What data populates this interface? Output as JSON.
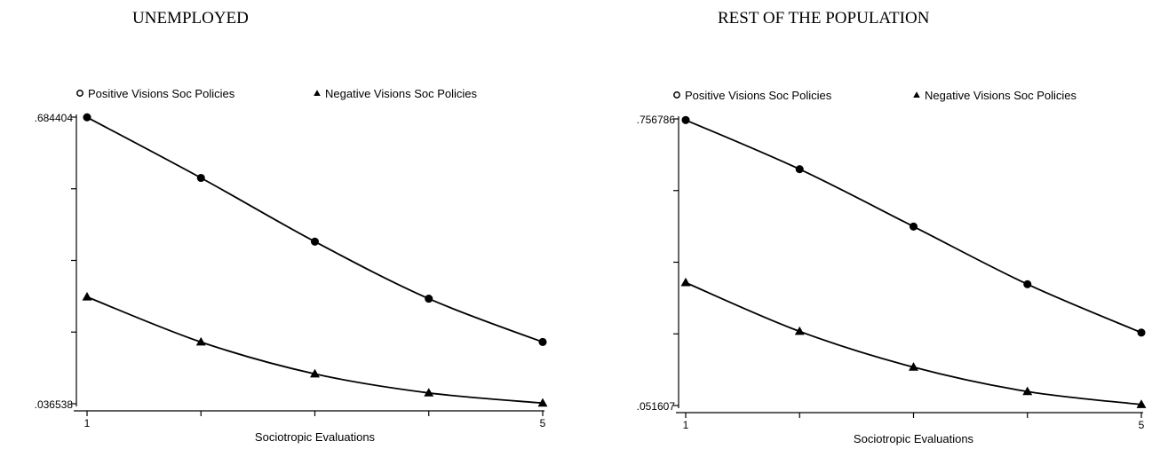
{
  "chart_data": [
    {
      "type": "line",
      "title": "UNEMPLOYED",
      "xlabel": "Sociotropic Evaluations",
      "ylabel": "",
      "x": [
        1,
        2,
        3,
        4,
        5
      ],
      "x_tick_labels": [
        "1",
        "5"
      ],
      "ylim": [
        0.036538,
        0.684404
      ],
      "y_tick_labels": [
        ".684404",
        ".036538"
      ],
      "legend_position": "top",
      "grid": false,
      "series": [
        {
          "name": "Positive Visions Soc Policies",
          "marker": "circle",
          "values": [
            0.684,
            0.547,
            0.403,
            0.274,
            0.176
          ]
        },
        {
          "name": "Negative Visions Soc Policies",
          "marker": "triangle",
          "values": [
            0.278,
            0.176,
            0.104,
            0.061,
            0.038
          ]
        }
      ]
    },
    {
      "type": "line",
      "title": "REST OF THE POPULATION",
      "xlabel": "Sociotropic Evaluations",
      "ylabel": "",
      "x": [
        1,
        2,
        3,
        4,
        5
      ],
      "x_tick_labels": [
        "1",
        "5"
      ],
      "ylim": [
        0.051607,
        0.756786
      ],
      "y_tick_labels": [
        ".756786",
        ".051607"
      ],
      "legend_position": "top",
      "grid": false,
      "series": [
        {
          "name": "Positive Visions Soc Policies",
          "marker": "circle",
          "values": [
            0.754,
            0.633,
            0.492,
            0.35,
            0.231
          ]
        },
        {
          "name": "Negative Visions Soc Policies",
          "marker": "triangle",
          "values": [
            0.354,
            0.234,
            0.146,
            0.086,
            0.054
          ]
        }
      ]
    }
  ]
}
